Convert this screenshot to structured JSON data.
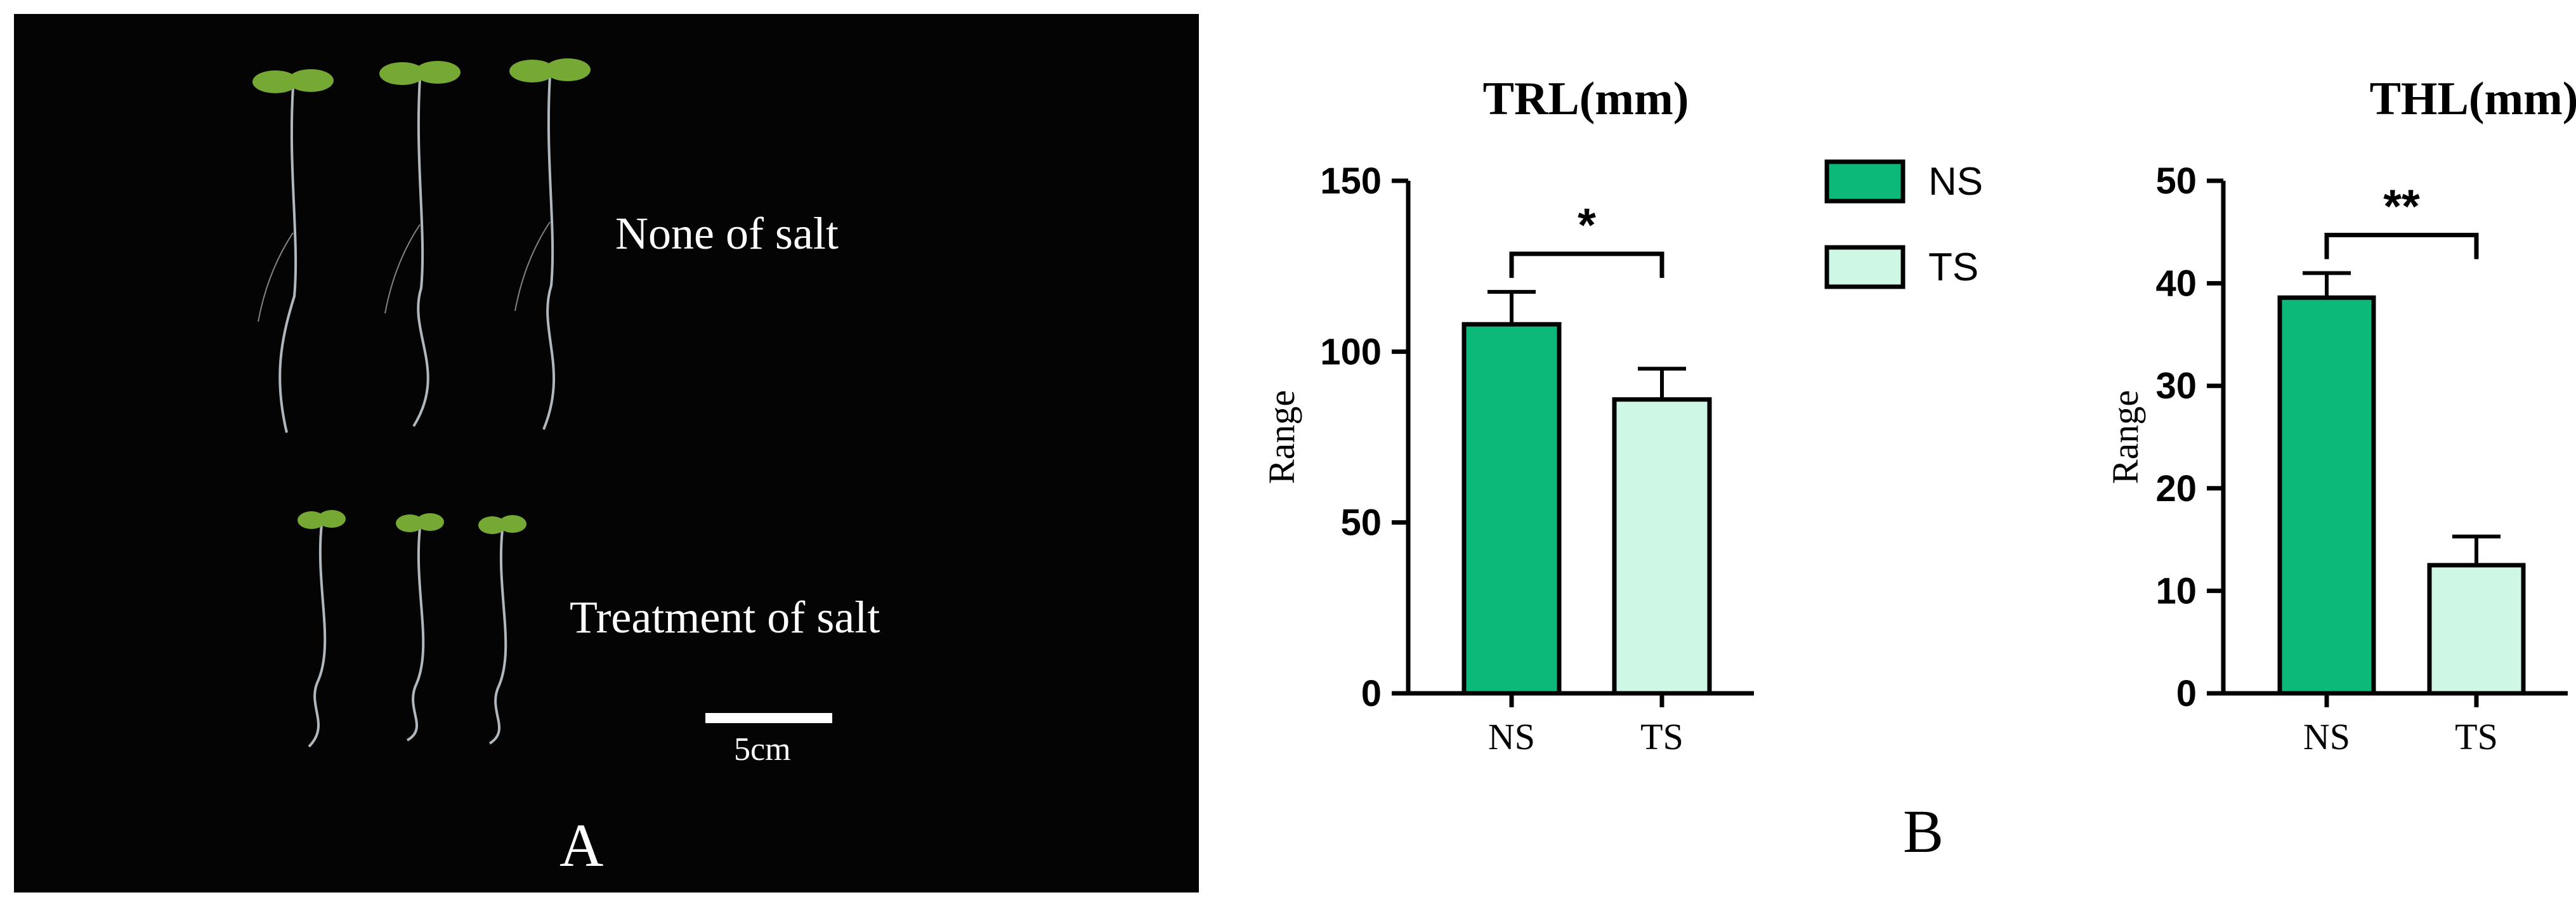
{
  "photo_panel": {
    "label_none": "None of salt",
    "label_treatment": "Treatment of salt",
    "scale_bar_label": "5cm",
    "panel_letter": "A"
  },
  "chart_panel": {
    "panel_letter": "B"
  },
  "colors": {
    "ns_fill": "#0cb978",
    "ts_fill": "#cff7e6",
    "axis": "#000000",
    "background_photo": "#040404",
    "seedling_leaf": "#76a834",
    "seedling_root": "#cfd8df"
  },
  "legend": {
    "entries": [
      {
        "label": "NS",
        "color": "#0cb978"
      },
      {
        "label": "TS",
        "color": "#cff7e6"
      }
    ]
  },
  "chart_data": [
    {
      "type": "bar",
      "title": "TRL(mm)",
      "ylabel": "Range",
      "xlabel": "",
      "categories": [
        "NS",
        "TS"
      ],
      "values": [
        108,
        86
      ],
      "error": [
        9.5,
        9
      ],
      "ylim": [
        0,
        150
      ],
      "yticks": [
        0,
        50,
        100,
        150
      ],
      "significance": "*",
      "grid": false
    },
    {
      "type": "bar",
      "title": "THL(mm)",
      "ylabel": "Range",
      "xlabel": "",
      "categories": [
        "NS",
        "TS"
      ],
      "values": [
        38.6,
        12.5
      ],
      "error": [
        2.4,
        2.8
      ],
      "ylim": [
        0,
        50
      ],
      "yticks": [
        0,
        10,
        20,
        30,
        40,
        50
      ],
      "significance": "**",
      "grid": false
    }
  ]
}
